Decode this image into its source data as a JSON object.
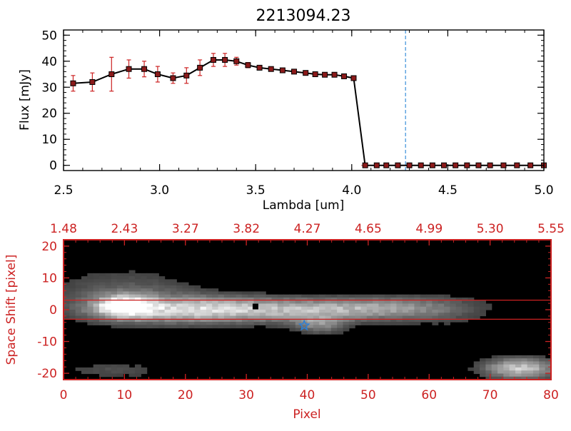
{
  "colors": {
    "axis": "#000000",
    "error_bar": "#cc2222",
    "marker": "#8b1a1a",
    "vline": "#3a8fd9",
    "frame_red": "#cc2222",
    "star": "#2a7fd8"
  },
  "chart_data": [
    {
      "type": "line",
      "title": "2213094.23",
      "xlabel": "Lambda [um]",
      "ylabel": "Flux [mJy]",
      "xlim": [
        2.5,
        5.0
      ],
      "ylim": [
        -2,
        52
      ],
      "xticks": [
        2.5,
        3.0,
        3.5,
        4.0,
        4.5,
        5.0
      ],
      "xtick_labels": [
        "2.5",
        "3.0",
        "3.5",
        "4.0",
        "4.5",
        "5.0"
      ],
      "yticks": [
        0,
        10,
        20,
        30,
        40,
        50
      ],
      "ytick_labels": [
        "0",
        "10",
        "20",
        "30",
        "40",
        "50"
      ],
      "grid": false,
      "vertical_line_x": 4.28,
      "series": [
        {
          "x": [
            2.55,
            2.65,
            2.75,
            2.84,
            2.92,
            2.99,
            3.07,
            3.14,
            3.21,
            3.28,
            3.34,
            3.4,
            3.46,
            3.52,
            3.58,
            3.64,
            3.7,
            3.76,
            3.81,
            3.86,
            3.91,
            3.96,
            4.01,
            4.07,
            4.13,
            4.18,
            4.24,
            4.3,
            4.36,
            4.42,
            4.48,
            4.54,
            4.6,
            4.66,
            4.72,
            4.79,
            4.86,
            4.93,
            5.0
          ],
          "y": [
            31.5,
            32.0,
            35.0,
            37.0,
            37.0,
            35.0,
            33.5,
            34.5,
            37.5,
            40.5,
            40.5,
            40.0,
            38.5,
            37.5,
            37.0,
            36.5,
            36.0,
            35.5,
            35.0,
            34.8,
            34.8,
            34.2,
            33.5,
            0,
            0,
            0,
            0,
            0,
            0,
            0,
            0,
            0,
            0,
            0,
            0,
            0,
            0,
            0,
            0
          ],
          "yerr": [
            3.0,
            3.5,
            6.5,
            3.5,
            3.0,
            3.0,
            2.0,
            3.0,
            3.0,
            2.5,
            2.5,
            1.5,
            1.0,
            0.8,
            0.7,
            0.6,
            0.5,
            0.5,
            0.5,
            0.5,
            0.5,
            0.5,
            0.5,
            0,
            0,
            0,
            0,
            0,
            0,
            0,
            0,
            0,
            0,
            0,
            0,
            0,
            0,
            0,
            0
          ]
        }
      ]
    },
    {
      "type": "heatmap",
      "xlabel": "Pixel",
      "ylabel": "Space Shift [pixel]",
      "xlim": [
        0,
        80
      ],
      "ylim": [
        -22,
        22
      ],
      "xticks": [
        0,
        10,
        20,
        30,
        40,
        50,
        60,
        70,
        80
      ],
      "xtick_labels": [
        "0",
        "10",
        "20",
        "30",
        "40",
        "50",
        "60",
        "70",
        "80"
      ],
      "yticks": [
        -20,
        -10,
        0,
        10,
        20
      ],
      "ytick_labels": [
        "-20",
        "-10",
        "0",
        "10",
        "20"
      ],
      "top_axis_label_positions": [
        0,
        10,
        20,
        30,
        40,
        50,
        60,
        70,
        80
      ],
      "top_axis_labels": [
        "1.48",
        "2.43",
        "3.27",
        "3.82",
        "4.27",
        "4.65",
        "4.99",
        "5.30",
        "5.55"
      ],
      "horizontal_lines_y": [
        3,
        -3
      ],
      "square_marker": {
        "x": 31.5,
        "y": 1
      },
      "star_marker": {
        "x": 39.5,
        "y": -5
      },
      "blobs": [
        {
          "x": 10,
          "y": 1,
          "sx": 3.0,
          "sy": 2.2,
          "amp": 1.0
        },
        {
          "x": 20,
          "y": 0,
          "sx": 10,
          "sy": 2.8,
          "amp": 0.62
        },
        {
          "x": 38,
          "y": 0,
          "sx": 12,
          "sy": 2.4,
          "amp": 0.48
        },
        {
          "x": 52,
          "y": 0.5,
          "sx": 8,
          "sy": 2.2,
          "amp": 0.32
        },
        {
          "x": 42,
          "y": -4.5,
          "sx": 3,
          "sy": 2.0,
          "amp": 0.38
        },
        {
          "x": 75,
          "y": -18.5,
          "sx": 4,
          "sy": 2.2,
          "amp": 0.72
        },
        {
          "x": 10,
          "y": 5,
          "sx": 8,
          "sy": 5,
          "amp": 0.22
        },
        {
          "x": 62,
          "y": 0,
          "sx": 6,
          "sy": 4,
          "amp": 0.12
        },
        {
          "x": 8,
          "y": -19,
          "sx": 6,
          "sy": 2,
          "amp": 0.14
        }
      ]
    }
  ]
}
